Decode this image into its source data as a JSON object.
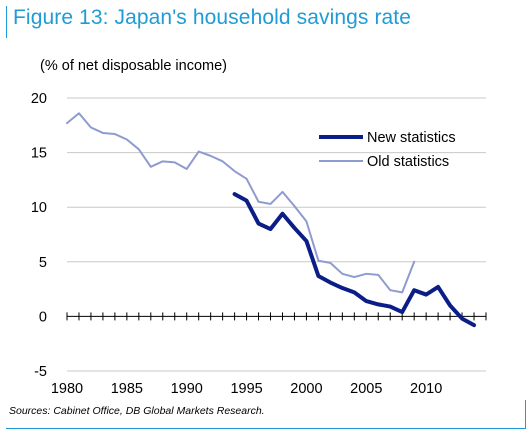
{
  "title": "Figure 13: Japan's household savings rate",
  "unit_label": "(% of net disposable income)",
  "source": "Sources:  Cabinet Office, DB Global Markets Research.",
  "colors": {
    "title": "#1f9bd7",
    "new_series": "#0b1e87",
    "old_series": "#8e9bd0",
    "grid": "#c8c8c8"
  },
  "chart_data": {
    "type": "line",
    "title": "Figure 13: Japan's household savings rate",
    "ylabel": "(% of net disposable income)",
    "xlabel": "",
    "xlim": [
      1980,
      2015
    ],
    "ylim": [
      -5,
      20
    ],
    "x_ticks": [
      1980,
      1985,
      1990,
      1995,
      2000,
      2005,
      2010
    ],
    "x_tick_labels": [
      "1980",
      "1985",
      "1990",
      "1995",
      "2000",
      "2005",
      "2010"
    ],
    "y_ticks": [
      -5,
      0,
      5,
      10,
      15,
      20
    ],
    "y_tick_labels": [
      "-5",
      "0",
      "5",
      "10",
      "15",
      "20"
    ],
    "grid": "horizontal",
    "legend_position": "top-right",
    "series": [
      {
        "name": "New statistics",
        "color": "#0b1e87",
        "x": [
          1994,
          1995,
          1996,
          1997,
          1998,
          1999,
          2000,
          2001,
          2002,
          2003,
          2004,
          2005,
          2006,
          2007,
          2008,
          2009,
          2010,
          2011,
          2012,
          2013,
          2014
        ],
        "values": [
          11.2,
          10.6,
          8.5,
          8.0,
          9.4,
          8.1,
          6.9,
          3.7,
          3.1,
          2.6,
          2.2,
          1.4,
          1.1,
          0.9,
          0.4,
          2.4,
          2.0,
          2.7,
          1.0,
          -0.2,
          -0.8
        ]
      },
      {
        "name": "Old statistics",
        "color": "#8e9bd0",
        "x": [
          1980,
          1981,
          1982,
          1983,
          1984,
          1985,
          1986,
          1987,
          1988,
          1989,
          1990,
          1991,
          1992,
          1993,
          1994,
          1995,
          1996,
          1997,
          1998,
          1999,
          2000,
          2001,
          2002,
          2003,
          2004,
          2005,
          2006,
          2007,
          2008,
          2009
        ],
        "values": [
          17.7,
          18.6,
          17.3,
          16.8,
          16.7,
          16.2,
          15.3,
          13.7,
          14.2,
          14.1,
          13.5,
          15.1,
          14.7,
          14.2,
          13.3,
          12.6,
          10.5,
          10.3,
          11.4,
          10.1,
          8.7,
          5.1,
          4.9,
          3.9,
          3.6,
          3.9,
          3.8,
          2.4,
          2.2,
          5.0
        ]
      }
    ]
  }
}
